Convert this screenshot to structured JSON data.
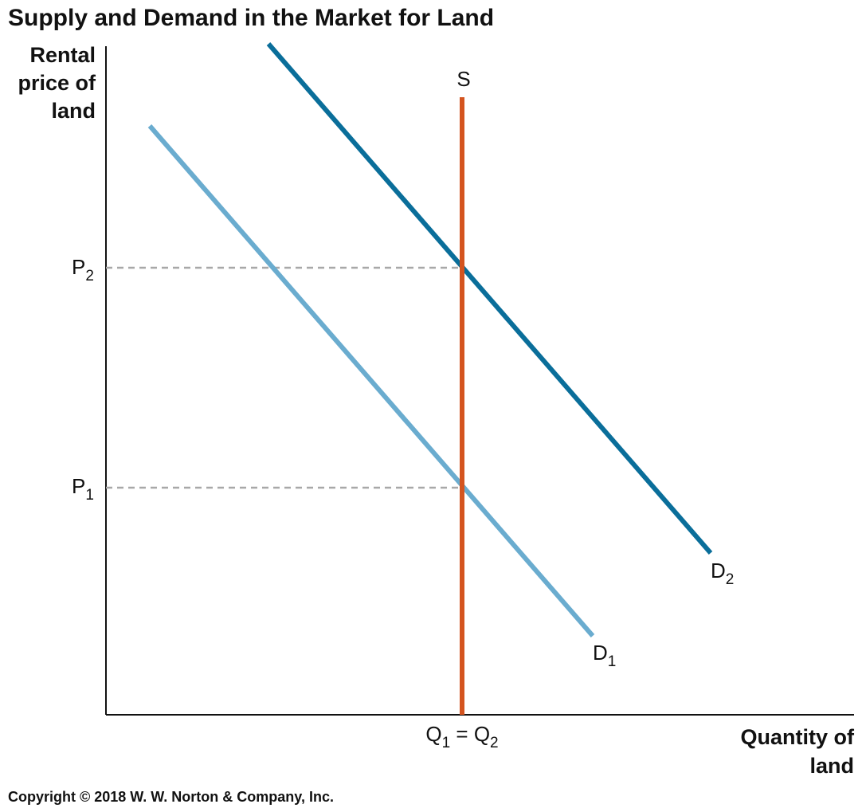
{
  "title": "Supply and Demand in the Market for Land",
  "y_axis_label": [
    "Rental",
    "price of",
    "land"
  ],
  "x_axis_label": [
    "Quantity of",
    "land"
  ],
  "price_labels": [
    {
      "base": "P",
      "sub": "2"
    },
    {
      "base": "P",
      "sub": "1"
    }
  ],
  "quantity_label": {
    "q1": "Q",
    "q1_sub": "1",
    "eq": " = ",
    "q2": "Q",
    "q2_sub": "2"
  },
  "curves": {
    "supply": {
      "label": "S",
      "color": "#d4541f"
    },
    "demand1": {
      "base": "D",
      "sub": "1",
      "color": "#6aaccf"
    },
    "demand2": {
      "base": "D",
      "sub": "2",
      "color": "#0a6e9a"
    }
  },
  "guide_color": "#a8a8a8",
  "copyright": "Copyright © 2018 W. W. Norton & Company, Inc."
}
